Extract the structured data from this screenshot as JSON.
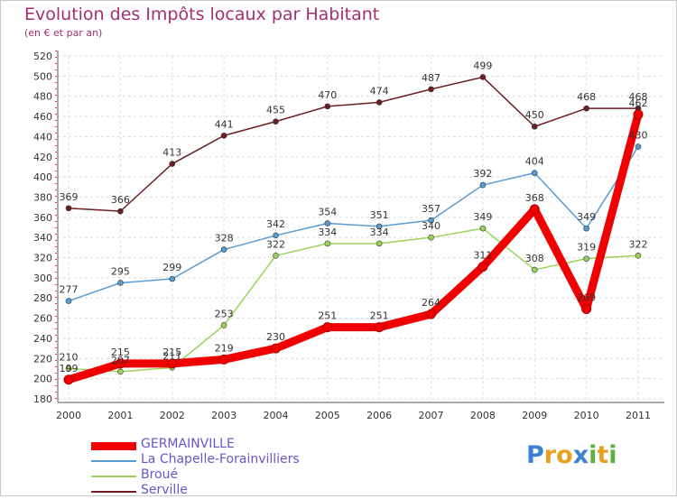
{
  "chart_data": {
    "type": "line",
    "title": "Evolution des Impôts locaux par Habitant",
    "subtitle": "(en € et par an)",
    "xlabel": "",
    "ylabel": "",
    "ylim": [
      180,
      520
    ],
    "yticks": [
      180,
      200,
      220,
      240,
      260,
      280,
      300,
      320,
      340,
      360,
      380,
      400,
      420,
      440,
      460,
      480,
      500,
      520
    ],
    "grid": true,
    "legend_position": "bottom-left",
    "x": [
      "2000",
      "2001",
      "2002",
      "2003",
      "2004",
      "2005",
      "2006",
      "2007",
      "2008",
      "2009",
      "2010",
      "2011"
    ],
    "series": [
      {
        "name": "Serville",
        "color": "#6e1e23",
        "values": [
          369,
          366,
          413,
          441,
          455,
          470,
          474,
          487,
          499,
          450,
          468,
          468
        ]
      },
      {
        "name": "La Chapelle-Forainvilliers",
        "color": "#5a9bd2",
        "values": [
          277,
          295,
          299,
          328,
          342,
          354,
          351,
          357,
          392,
          404,
          349,
          430
        ]
      },
      {
        "name": "Broué",
        "color": "#9bd25a",
        "values": [
          210,
          207,
          211,
          253,
          322,
          334,
          334,
          340,
          349,
          308,
          319,
          322
        ]
      },
      {
        "name": "GERMAINVILLE",
        "color": "#f00000",
        "values": [
          199,
          215,
          215,
          219,
          230,
          251,
          251,
          264,
          311,
          368,
          269,
          462
        ]
      }
    ]
  },
  "legend": {
    "items": [
      {
        "name": "GERMAINVILLE",
        "color": "#f00000",
        "width": 9
      },
      {
        "name": "La Chapelle-Forainvilliers",
        "color": "#5a9bd2",
        "width": 2
      },
      {
        "name": "Broué",
        "color": "#9bd25a",
        "width": 2
      },
      {
        "name": "Serville",
        "color": "#6e1e23",
        "width": 2
      }
    ]
  },
  "logo": {
    "letters": [
      "P",
      "r",
      "o",
      "x",
      "i",
      "t",
      "i"
    ],
    "colors": [
      "#3c82d2",
      "#e8a020",
      "#e8a020",
      "#3c82d2",
      "#5ab43c",
      "#e8a020",
      "#5ab43c"
    ]
  }
}
